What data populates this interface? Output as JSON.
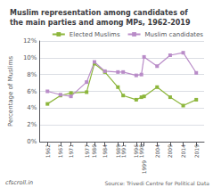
{
  "chart_data": {
    "type": "line",
    "title": "Muslim representation among candidates of\nthe main parties and among MPs, 1962-2019",
    "y_label": "Percentage of Muslims",
    "annotations": [
      "Source: Trivedi Centre for Political Data",
      "cfscroll.in"
    ],
    "x": [
      1962,
      1967,
      1971,
      1977,
      1980,
      1984,
      1989,
      1991,
      1996,
      1998,
      1999,
      2004,
      2009,
      2014,
      2019
    ],
    "series": [
      {
        "name": "Elected Muslims",
        "color": "#8db63c",
        "values": [
          4.5,
          5.5,
          5.8,
          5.9,
          9.3,
          8.3,
          6.5,
          5.5,
          5.0,
          5.3,
          5.4,
          6.5,
          5.3,
          4.3,
          5.0
        ]
      },
      {
        "name": "Muslim candidates",
        "color": "#b98cc8",
        "values": [
          6.0,
          5.6,
          5.4,
          7.1,
          9.5,
          8.4,
          8.3,
          8.3,
          7.9,
          8.0,
          10.1,
          9.0,
          10.3,
          10.6,
          8.2
        ]
      }
    ],
    "xlim": [
      1959,
      2022
    ],
    "xticks": [
      1962,
      1967,
      1971,
      1977,
      1980,
      1984,
      1989,
      1991,
      1996,
      1998,
      1999,
      2004,
      2009,
      2014,
      2019
    ],
    "ylim": [
      0,
      12
    ],
    "yticks": [
      {
        "value": 0,
        "label": "0%"
      },
      {
        "value": 2,
        "label": "2%"
      },
      {
        "value": 4,
        "label": "4%"
      },
      {
        "value": 6,
        "label": "6%"
      },
      {
        "value": 8,
        "label": "8%"
      },
      {
        "value": 10,
        "label": "10%"
      },
      {
        "value": 12,
        "label": "12%"
      }
    ],
    "grid": true,
    "legend": "upper right",
    "marker": "square"
  }
}
